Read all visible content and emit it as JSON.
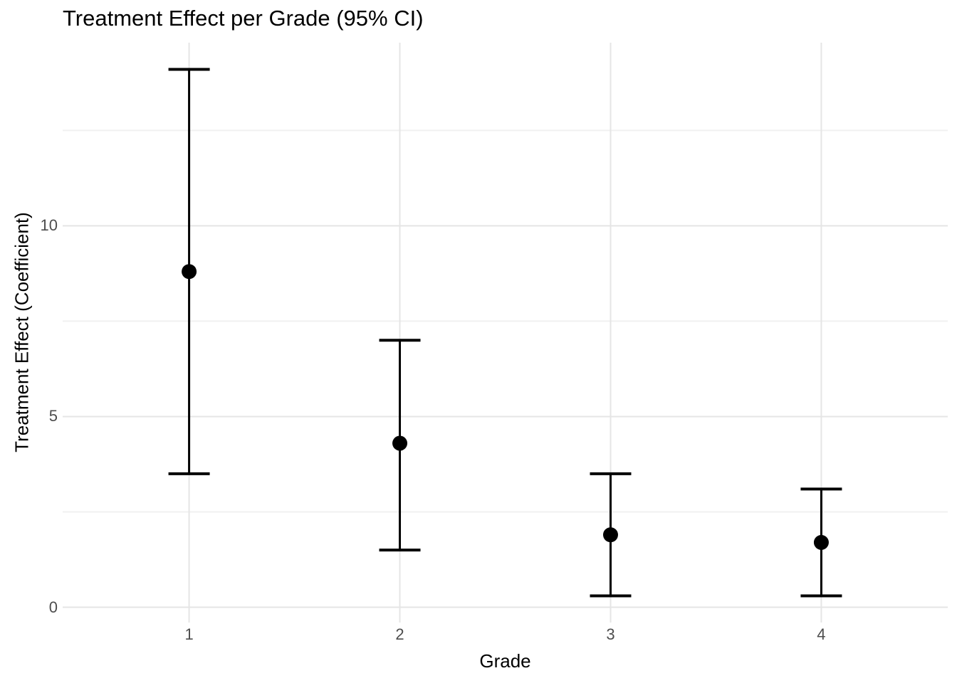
{
  "chart_data": {
    "type": "pointrange",
    "title": "Treatment Effect per Grade (95% CI)",
    "xlabel": "Grade",
    "ylabel": "Treatment Effect (Coefficient)",
    "categories": [
      "1",
      "2",
      "3",
      "4"
    ],
    "series": [
      {
        "name": "estimate",
        "values": [
          8.8,
          4.3,
          1.9,
          1.7
        ]
      },
      {
        "name": "ci_lower",
        "values": [
          3.5,
          1.5,
          0.3,
          0.3
        ]
      },
      {
        "name": "ci_upper",
        "values": [
          14.1,
          7.0,
          3.5,
          3.1
        ]
      }
    ],
    "yticks": [
      "0",
      "5",
      "10"
    ],
    "ytick_values": [
      0,
      5,
      10
    ],
    "y_minor_tick_values": [
      2.5,
      7.5,
      12.5
    ],
    "ylim": [
      -0.4,
      14.8
    ],
    "x_expand": 0.6,
    "grid": true,
    "legend": "none",
    "colors": {
      "point": "#000000",
      "errorbar": "#000000",
      "grid_major": "#e5e5e5",
      "grid_minor": "#f1f1f1",
      "tick_label": "#4d4d4d",
      "title_text": "#000000",
      "background": "#ffffff"
    }
  }
}
